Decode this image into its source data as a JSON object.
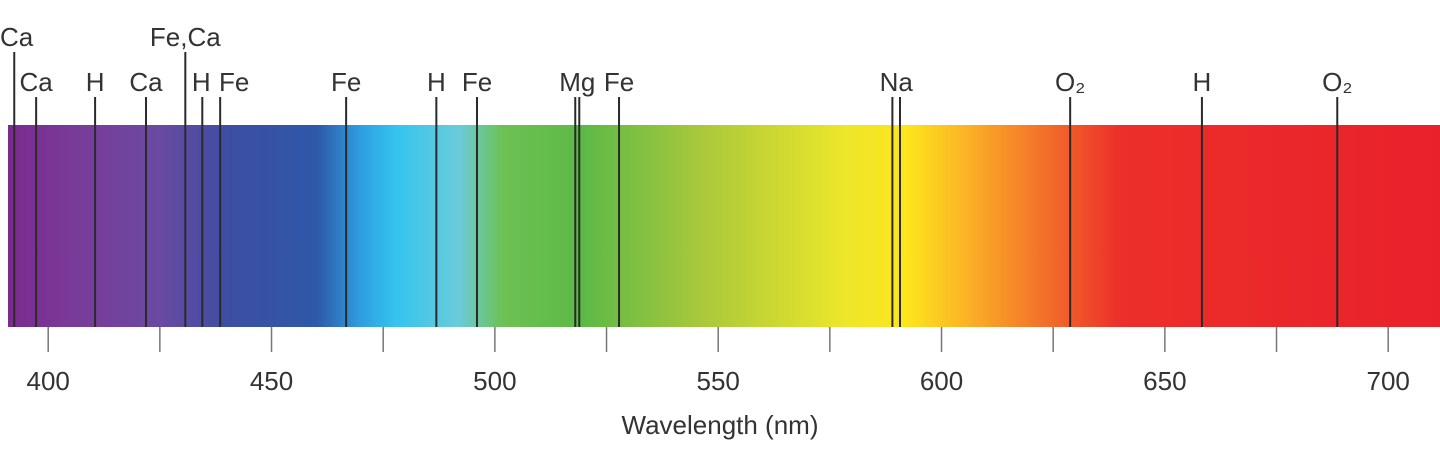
{
  "chart_data": {
    "type": "spectrum",
    "x_label": "Wavelength (nm)",
    "xlim": [
      391,
      711.6
    ],
    "xticks": [
      400,
      450,
      500,
      550,
      600,
      650,
      700
    ],
    "minor_xticks": [
      425,
      475,
      525,
      575,
      625,
      675
    ],
    "spectrum": [
      {
        "x": 391,
        "color": "#7b2a8e"
      },
      {
        "x": 405,
        "color": "#7a3a98"
      },
      {
        "x": 425,
        "color": "#6a4aa2"
      },
      {
        "x": 440,
        "color": "#3d4ea3"
      },
      {
        "x": 460,
        "color": "#2e58a8"
      },
      {
        "x": 470,
        "color": "#2f9ee0"
      },
      {
        "x": 478,
        "color": "#34c4ef"
      },
      {
        "x": 492,
        "color": "#6acbd9"
      },
      {
        "x": 502,
        "color": "#6cc152"
      },
      {
        "x": 520,
        "color": "#5db946"
      },
      {
        "x": 545,
        "color": "#a6c73c"
      },
      {
        "x": 578,
        "color": "#ece62a"
      },
      {
        "x": 592,
        "color": "#fde61c"
      },
      {
        "x": 606,
        "color": "#fbb126"
      },
      {
        "x": 622,
        "color": "#f3732a"
      },
      {
        "x": 640,
        "color": "#ec2f2a"
      },
      {
        "x": 711.6,
        "color": "#e9212b"
      }
    ],
    "lines": [
      {
        "label": "Ca",
        "row": 1,
        "wavelengths": [
          392.4
        ]
      },
      {
        "label": "Ca",
        "row": 2,
        "wavelengths": [
          397.3
        ]
      },
      {
        "label": "H",
        "row": 2,
        "wavelengths": [
          410.5
        ]
      },
      {
        "label": "Ca",
        "row": 2,
        "wavelengths": [
          421.9
        ]
      },
      {
        "label": "Fe,Ca",
        "row": 1,
        "wavelengths": [
          430.7
        ]
      },
      {
        "label": "H",
        "row": 2,
        "wavelengths": [
          434.5
        ]
      },
      {
        "label": "Fe",
        "row": 2,
        "wavelengths": [
          438.5
        ]
      },
      {
        "label": "Fe",
        "row": 2,
        "wavelengths": [
          466.7
        ]
      },
      {
        "label": "H",
        "row": 2,
        "wavelengths": [
          486.9
        ]
      },
      {
        "label": "Fe",
        "row": 2,
        "wavelengths": [
          496.0
        ]
      },
      {
        "label": "Mg",
        "row": 2,
        "wavelengths": [
          518.0,
          518.9
        ]
      },
      {
        "label": "Fe",
        "row": 2,
        "wavelengths": [
          527.8
        ]
      },
      {
        "label": "Na",
        "row": 2,
        "wavelengths": [
          589.0,
          590.7
        ]
      },
      {
        "label": "O₂",
        "row": 2,
        "wavelengths": [
          628.8
        ]
      },
      {
        "label": "H",
        "row": 2,
        "wavelengths": [
          658.3
        ]
      },
      {
        "label": "O₂",
        "row": 2,
        "wavelengths": [
          688.6
        ]
      }
    ]
  }
}
